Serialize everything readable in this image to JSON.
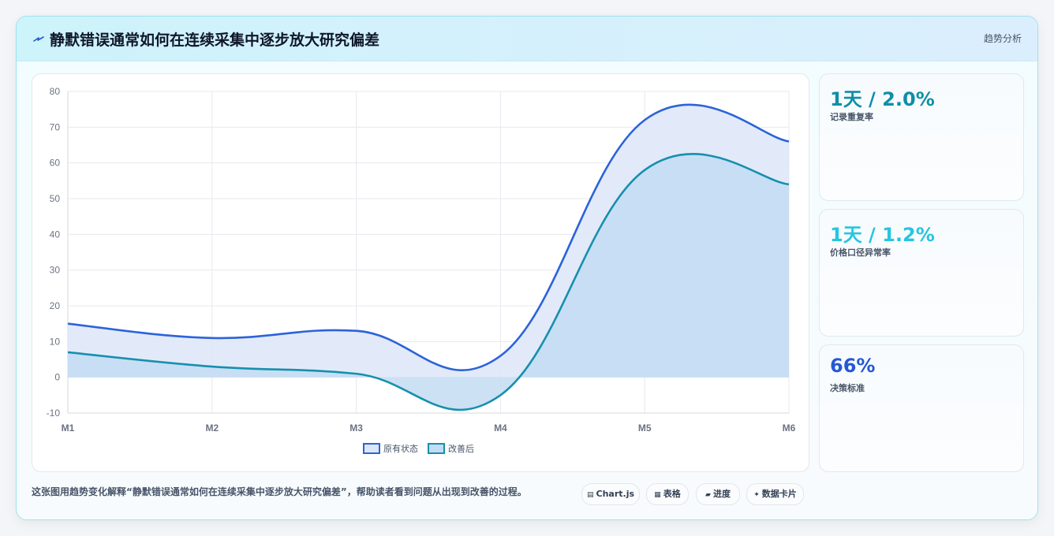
{
  "header": {
    "title": "静默错误通常如何在连续采集中逐步放大研究偏差",
    "tag": "趋势分析",
    "icon": "lightning-icon"
  },
  "chart_data": {
    "type": "area",
    "x": [
      "M1",
      "M2",
      "M3",
      "M4",
      "M5",
      "M6"
    ],
    "ylim": [
      -10,
      80
    ],
    "yticks": [
      -10,
      0,
      10,
      20,
      30,
      40,
      50,
      60,
      70,
      80
    ],
    "grid": true,
    "legend_position": "bottom",
    "series": [
      {
        "name": "原有状态",
        "values": [
          15,
          11,
          13,
          6,
          72,
          66
        ],
        "color": "#2b63d9",
        "fill": "#dde6f9"
      },
      {
        "name": "改善后",
        "values": [
          7,
          3,
          1,
          -5,
          58,
          54
        ],
        "color": "#1690ad",
        "fill": "#c3dcf2"
      }
    ]
  },
  "stats": [
    {
      "value": "1天 / 2.0%",
      "label": "记录重复率",
      "color": "#0e8fa8"
    },
    {
      "value": "1天 / 1.2%",
      "label": "价格口径异常率",
      "color": "#25c6e0"
    },
    {
      "value": "66%",
      "label": "决策标准",
      "color": "#2458d4"
    }
  ],
  "footer": {
    "caption": "这张图用趋势变化解释“静默错误通常如何在连续采集中逐步放大研究偏差”，帮助读者看到问题从出现到改善的过程。",
    "pills": [
      {
        "icon": "chart-icon",
        "glyph": "▤",
        "label": "Chart.js"
      },
      {
        "icon": "table-icon",
        "glyph": "▦",
        "label": "表格"
      },
      {
        "icon": "progress-icon",
        "glyph": "▰",
        "label": "进度"
      },
      {
        "icon": "sparkle-icon",
        "glyph": "✦",
        "label": "数据卡片"
      }
    ]
  }
}
